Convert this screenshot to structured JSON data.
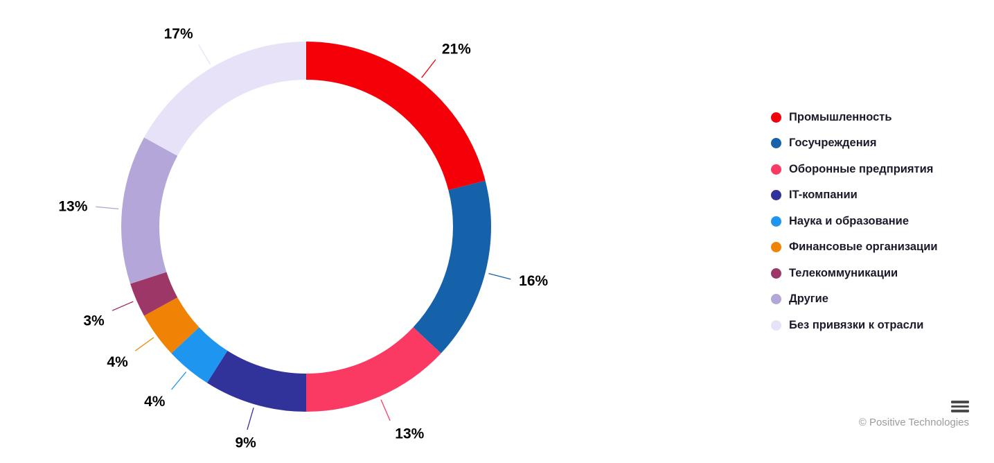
{
  "chart_data": {
    "type": "pie",
    "subtype": "donut",
    "title": "",
    "value_suffix": "%",
    "legend_position": "right",
    "start_angle_deg": 0,
    "direction": "clockwise",
    "segments": [
      {
        "label": "Промышленность",
        "value": 21,
        "color": "#f50008"
      },
      {
        "label": "Госучреждения",
        "value": 16,
        "color": "#1562ab"
      },
      {
        "label": "Оборонные предприятия",
        "value": 13,
        "color": "#fb3a63"
      },
      {
        "label": "IT-компании",
        "value": 9,
        "color": "#32329b"
      },
      {
        "label": "Наука и образование",
        "value": 4,
        "color": "#1e96f0"
      },
      {
        "label": "Финансовые организации",
        "value": 4,
        "color": "#f08306"
      },
      {
        "label": "Телекоммуникации",
        "value": 3,
        "color": "#9d3768"
      },
      {
        "label": "Другие",
        "value": 13,
        "color": "#b4a6d8"
      },
      {
        "label": "Без привязки к отрасли",
        "value": 17,
        "color": "#e7e2f7"
      }
    ]
  },
  "footer": {
    "copyright": "© Positive Technologies"
  },
  "icons": {
    "menu": "hamburger-menu-icon"
  }
}
